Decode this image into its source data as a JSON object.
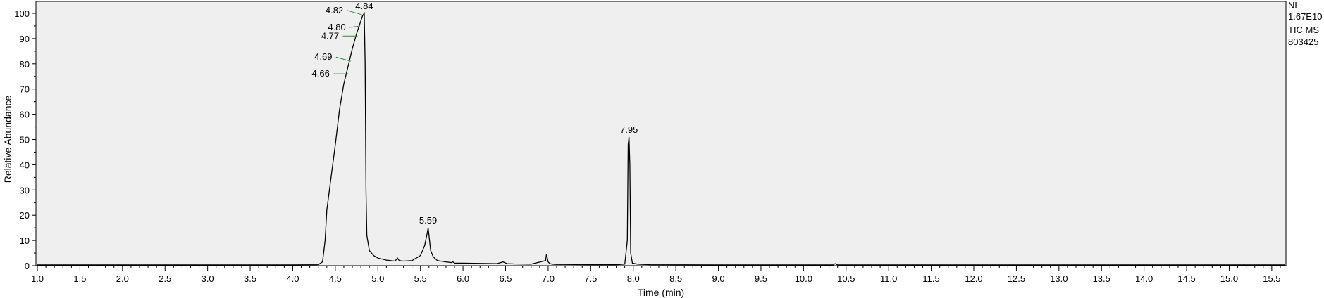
{
  "chart_data": {
    "type": "line",
    "title": "",
    "xlabel": "Time (min)",
    "ylabel": "Relative Abundance",
    "xlim": [
      1.0,
      15.65
    ],
    "ylim": [
      0,
      100
    ],
    "x_ticks": [
      "1.0",
      "1.5",
      "2.0",
      "2.5",
      "3.0",
      "3.5",
      "4.0",
      "4.5",
      "5.0",
      "5.5",
      "6.0",
      "6.5",
      "7.0",
      "7.5",
      "8.0",
      "8.5",
      "9.0",
      "9.5",
      "10.0",
      "10.5",
      "11.0",
      "11.5",
      "12.0",
      "12.5",
      "13.0",
      "13.5",
      "14.0",
      "14.5",
      "15.0",
      "15.5"
    ],
    "y_ticks": [
      "0",
      "10",
      "20",
      "30",
      "40",
      "50",
      "60",
      "70",
      "80",
      "90",
      "100"
    ],
    "info": [
      "NL:",
      "1.67E10",
      "TIC  MS",
      "803425"
    ],
    "plot_background": "#efefef",
    "line_color": "#000000",
    "peak_labels": [
      {
        "text": "4.84",
        "x": 4.84,
        "y": 100,
        "align": "direct"
      },
      {
        "text": "4.82",
        "x": 4.82,
        "y": 99.5,
        "align": "leader"
      },
      {
        "text": "4.80",
        "x": 4.8,
        "y": 95,
        "align": "leader"
      },
      {
        "text": "4.77",
        "x": 4.77,
        "y": 91,
        "align": "leader"
      },
      {
        "text": "4.69",
        "x": 4.69,
        "y": 81,
        "align": "leader"
      },
      {
        "text": "4.66",
        "x": 4.66,
        "y": 76,
        "align": "leader"
      },
      {
        "text": "5.59",
        "x": 5.59,
        "y": 15,
        "align": "direct"
      },
      {
        "text": "7.95",
        "x": 7.95,
        "y": 51,
        "align": "direct"
      }
    ],
    "series": [
      {
        "x": [
          1.0,
          2.0,
          3.0,
          4.0,
          4.3,
          4.35,
          4.38,
          4.4,
          4.45,
          4.5,
          4.55,
          4.6,
          4.65,
          4.7,
          4.75,
          4.8,
          4.82,
          4.84,
          4.85,
          4.86,
          4.87,
          4.9,
          4.95,
          5.0,
          5.1,
          5.2,
          5.22,
          5.23,
          5.25,
          5.3,
          5.4,
          5.5,
          5.55,
          5.58,
          5.59,
          5.6,
          5.62,
          5.65,
          5.7,
          5.8,
          5.87,
          5.88,
          5.9,
          6.0,
          6.2,
          6.4,
          6.47,
          6.49,
          6.52,
          6.6,
          6.8,
          6.97,
          6.98,
          6.99,
          7.0,
          7.02,
          7.05,
          7.1,
          7.2,
          7.5,
          7.8,
          7.9,
          7.93,
          7.94,
          7.95,
          7.96,
          7.97,
          7.99,
          8.05,
          8.2,
          9.0,
          10.0,
          10.35,
          10.37,
          10.4,
          11.0,
          12.0,
          13.0,
          14.0,
          15.0,
          15.65
        ],
        "y": [
          0.3,
          0.3,
          0.3,
          0.3,
          0.4,
          1.5,
          10,
          22,
          35,
          48,
          62,
          72,
          79,
          86,
          92,
          97,
          99,
          100,
          80,
          30,
          12,
          6,
          4,
          3,
          2.2,
          1.8,
          2.5,
          3,
          2,
          1.8,
          2,
          4,
          8,
          13,
          15,
          12,
          6,
          3.5,
          2,
          1.5,
          1.2,
          1.6,
          1,
          1,
          0.9,
          0.8,
          1.5,
          1.2,
          0.8,
          0.7,
          0.6,
          2,
          4.5,
          3,
          1.5,
          0.8,
          0.6,
          0.5,
          0.5,
          0.4,
          0.4,
          0.6,
          10,
          48,
          51,
          40,
          5,
          1,
          0.6,
          0.4,
          0.3,
          0.3,
          0.3,
          0.8,
          0.3,
          0.3,
          0.3,
          0.3,
          0.3,
          0.3,
          0.3
        ]
      }
    ]
  }
}
